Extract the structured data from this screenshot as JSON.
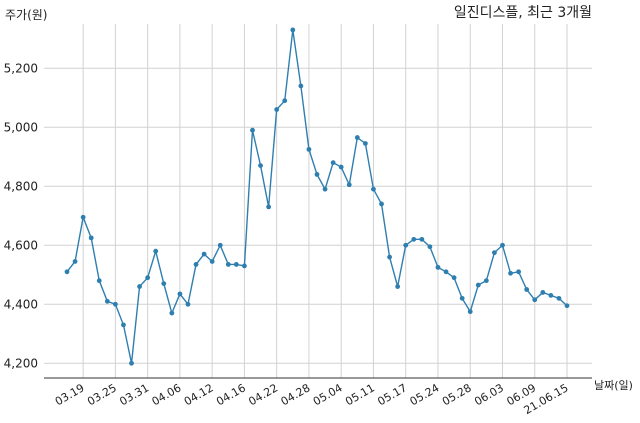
{
  "chart_data": {
    "type": "line",
    "title": "일진디스플, 최근 3개월",
    "ylabel": "주가(원)",
    "xlabel": "날짜(일)",
    "ylim": [
      4150,
      5350
    ],
    "yticks": [
      4200,
      4400,
      4600,
      4800,
      5000,
      5200
    ],
    "ytick_labels": [
      "4,200",
      "4,400",
      "4,600",
      "4,800",
      "5,000",
      "5,200"
    ],
    "grid": true,
    "line_color": "#2e7fb0",
    "x_tick_labels": [
      "03.19",
      "03.25",
      "03.31",
      "04.06",
      "04.12",
      "04.16",
      "04.22",
      "04.28",
      "05.04",
      "05.11",
      "05.17",
      "05.24",
      "05.28",
      "06.03",
      "06.09",
      "21.06.15"
    ],
    "x_tick_index": [
      2,
      6,
      10,
      14,
      18,
      22,
      26,
      30,
      34,
      38,
      42,
      46,
      50,
      54,
      58,
      62
    ],
    "values": [
      4510,
      4545,
      4695,
      4625,
      4480,
      4410,
      4400,
      4330,
      4200,
      4460,
      4490,
      4580,
      4470,
      4370,
      4435,
      4400,
      4535,
      4570,
      4545,
      4600,
      4535,
      4535,
      4530,
      4990,
      4870,
      4730,
      5060,
      5090,
      5330,
      5140,
      4925,
      4840,
      4790,
      4880,
      4865,
      4805,
      4965,
      4945,
      4790,
      4740,
      4560,
      4460,
      4600,
      4620,
      4620,
      4595,
      4525,
      4510,
      4490,
      4420,
      4375,
      4465,
      4480,
      4575,
      4600,
      4505,
      4510,
      4450,
      4415,
      4440,
      4430,
      4420,
      4395
    ]
  }
}
